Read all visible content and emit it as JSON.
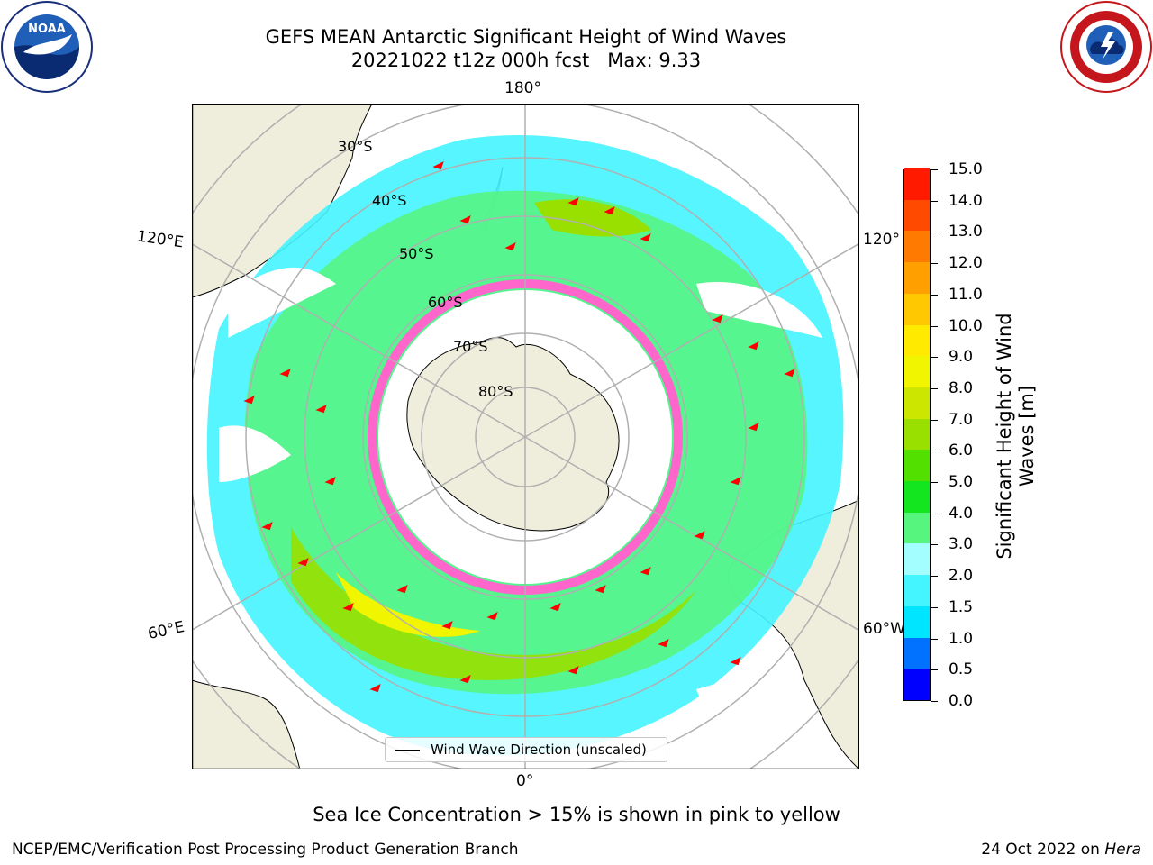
{
  "title": {
    "line1": "GEFS MEAN Antarctic Significant Height of Wind Waves",
    "line2": "20221022 t12z 000h fcst   Max: 9.33"
  },
  "logos": {
    "left": "NOAA",
    "right": "NATIONAL WEATHER SERVICE"
  },
  "map": {
    "projection": "south-polar-stereographic",
    "longitude_labels": {
      "top": "180°",
      "bottom": "0°",
      "left_upper": "120°E",
      "left_lower": "60°E",
      "right_upper": "120°",
      "right_lower": "60°W"
    },
    "latitude_labels": [
      "30°S",
      "40°S",
      "50°S",
      "60°S",
      "70°S",
      "80°S"
    ],
    "legend": "Wind Wave Direction (unscaled)",
    "colors": {
      "land": "#efeddc",
      "ocean_empty": "#ffffff",
      "sea_ice": "#ff66cc",
      "arrow": "#ff0000",
      "grid": "#b0b0b0"
    }
  },
  "colorbar": {
    "label": "Significant Height of Wind Waves [m]",
    "ticks": [
      "0.0",
      "0.5",
      "1.0",
      "1.5",
      "2.0",
      "3.0",
      "4.0",
      "5.0",
      "6.0",
      "7.0",
      "8.0",
      "9.0",
      "10.0",
      "11.0",
      "12.0",
      "13.0",
      "14.0",
      "15.0"
    ],
    "colors": [
      "#0000ff",
      "#0072ff",
      "#00e5ff",
      "#44f4ff",
      "#a3ffff",
      "#56f57d",
      "#13e51f",
      "#52e000",
      "#99e000",
      "#cce600",
      "#f1f500",
      "#ffea00",
      "#ffc800",
      "#ff9f00",
      "#ff7a00",
      "#ff4a00",
      "#ff1a00"
    ]
  },
  "subtitle": "Sea Ice Concentration > 15% is shown in pink to yellow",
  "footer": {
    "left": "NCEP/EMC/Verification Post Processing Product Generation Branch",
    "right_prefix": "24 Oct 2022 on ",
    "right_host": "Hera"
  }
}
